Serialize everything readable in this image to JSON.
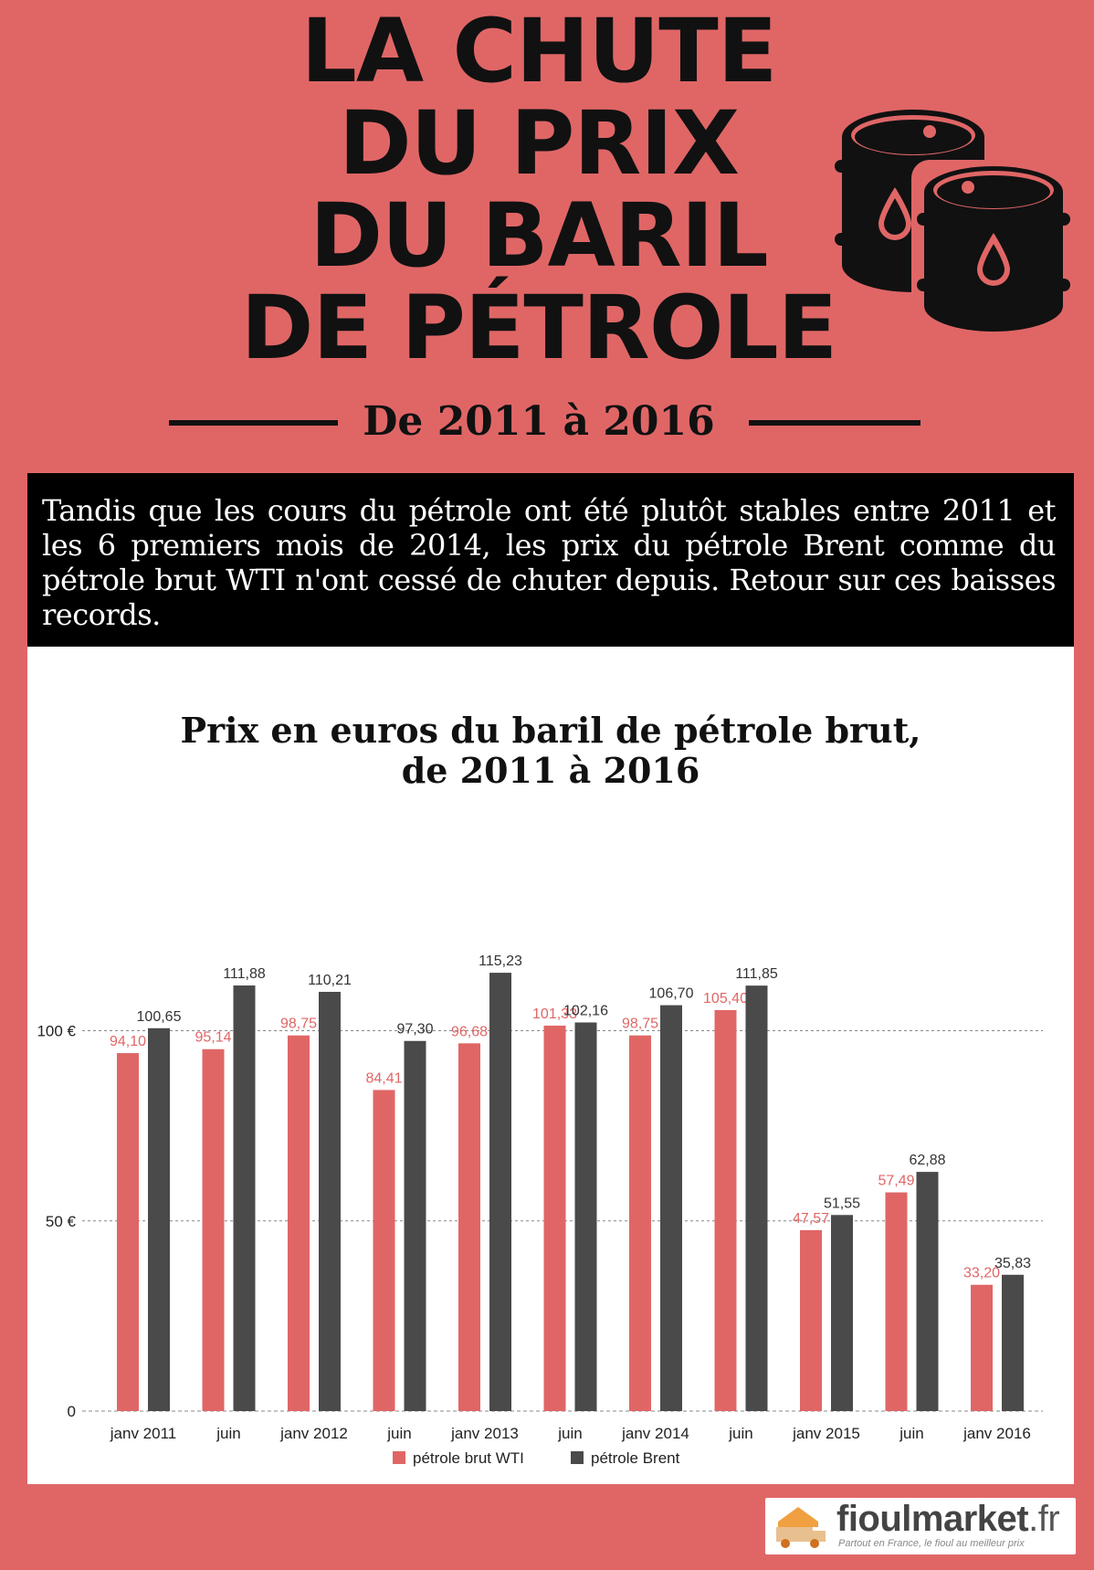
{
  "header": {
    "title_lines": [
      "LA CHUTE",
      "DU PRIX",
      "DU BARIL",
      "DE PÉTROLE"
    ],
    "subtitle": "De 2011 à 2016"
  },
  "intro": {
    "text": "Tandis que les cours du pétrole ont été plutôt stables entre 2011 et les 6 premiers mois de 2014, les prix du pétrole Brent comme du pétrole brut WTI n'ont cessé de chuter depuis. Retour sur ces baisses records."
  },
  "colors": {
    "background": "#e06666",
    "wti": "#e06666",
    "brent": "#4a4a4a",
    "dark": "#111111"
  },
  "icons": {
    "barrels": "oil-barrels-icon",
    "logo": "truck-house-icon"
  },
  "chart_data": {
    "type": "bar",
    "title_lines": [
      "Prix en euros du baril de pétrole brut,",
      "de 2011 à 2016"
    ],
    "categories": [
      "janv 2011",
      "juin",
      "janv 2012",
      "juin",
      "janv 2013",
      "juin",
      "janv 2014",
      "juin",
      "janv 2015",
      "juin",
      "janv 2016"
    ],
    "series": [
      {
        "name": "pétrole brut WTI",
        "values": [
          94.1,
          95.14,
          98.75,
          84.41,
          96.68,
          101.33,
          98.75,
          105.4,
          47.57,
          57.49,
          33.2
        ],
        "labels": [
          "94,10",
          "95,14",
          "98,75",
          "84,41",
          "96,68",
          "101,33",
          "98,75",
          "105,40",
          "47,57",
          "57,49",
          "33,20"
        ]
      },
      {
        "name": "pétrole Brent",
        "values": [
          100.65,
          111.88,
          110.21,
          97.3,
          115.23,
          102.16,
          106.7,
          111.85,
          51.55,
          62.88,
          35.83
        ],
        "labels": [
          "100,65",
          "111,88",
          "110,21",
          "97,30",
          "115,23",
          "102,16",
          "106,70",
          "111,85",
          "51,55",
          "62,88",
          "35,83"
        ]
      }
    ],
    "y_ticks": [
      {
        "value": 0,
        "label": "0"
      },
      {
        "value": 50,
        "label": "50 €"
      },
      {
        "value": 100,
        "label": "100 €"
      }
    ],
    "ylim": [
      0,
      125
    ],
    "grid": true,
    "legend": "bottom-center"
  },
  "footer": {
    "logo_name": "fioulmarket",
    "logo_tld": ".fr",
    "tagline": "Partout en France, le fioul au meilleur prix"
  }
}
